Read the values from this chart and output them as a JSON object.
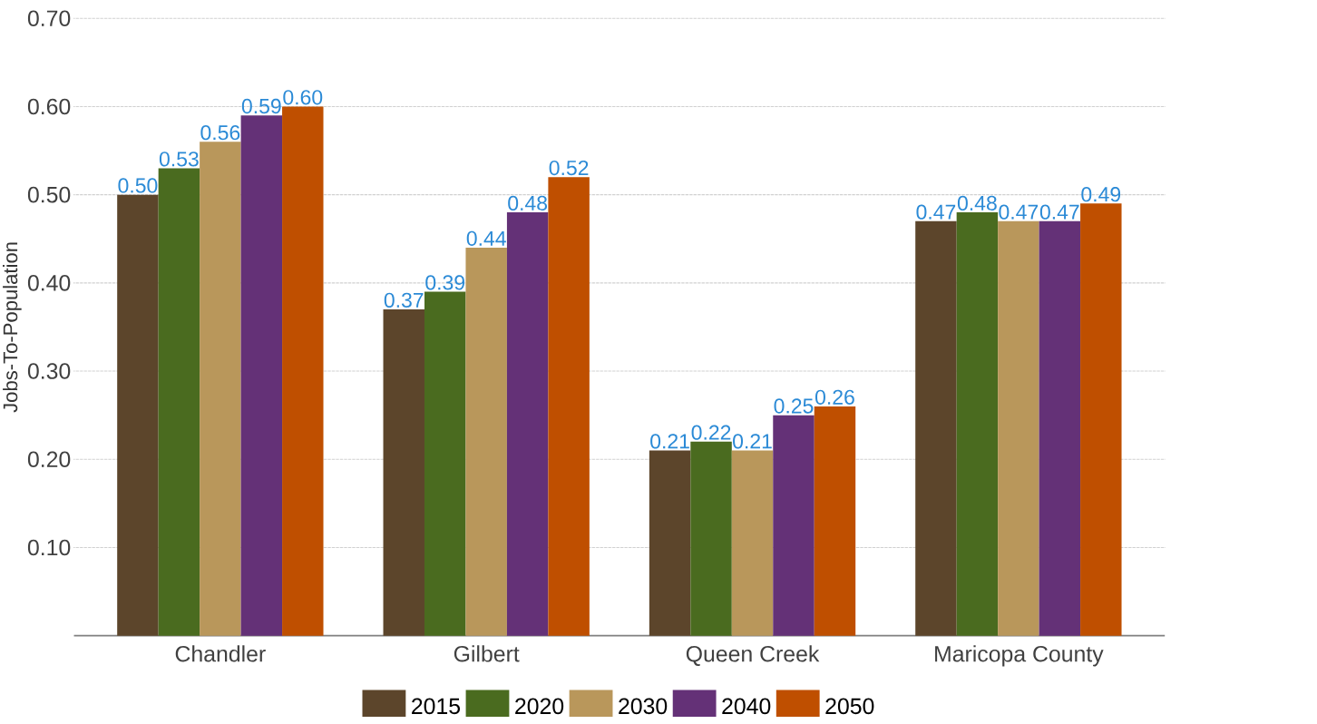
{
  "chart_data": {
    "type": "bar",
    "ylabel": "Jobs-To-Population",
    "categories": [
      "Chandler",
      "Gilbert",
      "Queen Creek",
      "Maricopa County"
    ],
    "series": [
      {
        "name": "2015",
        "color": "#5c452b",
        "values": [
          0.5,
          0.37,
          0.21,
          0.47
        ],
        "value_labels": [
          "0.50",
          "0.37",
          "0.21",
          "0.47"
        ]
      },
      {
        "name": "2020",
        "color": "#4a6b1f",
        "values": [
          0.53,
          0.39,
          0.22,
          0.48
        ],
        "value_labels": [
          "0.53",
          "0.39",
          "0.22",
          "0.48"
        ]
      },
      {
        "name": "2030",
        "color": "#b9975b",
        "values": [
          0.56,
          0.44,
          0.21,
          0.47
        ],
        "value_labels": [
          "0.56",
          "0.44",
          "0.21",
          "0.47"
        ]
      },
      {
        "name": "2040",
        "color": "#643177",
        "values": [
          0.59,
          0.48,
          0.25,
          0.47
        ],
        "value_labels": [
          "0.59",
          "0.48",
          "0.25",
          "0.47"
        ]
      },
      {
        "name": "2050",
        "color": "#bf4f00",
        "values": [
          0.6,
          0.52,
          0.26,
          0.49
        ],
        "value_labels": [
          "0.60",
          "0.52",
          "0.26",
          "0.49"
        ]
      }
    ],
    "ylim": [
      0,
      0.7
    ],
    "yticks": [
      {
        "value": 0.1,
        "label": "0.10"
      },
      {
        "value": 0.2,
        "label": "0.20"
      },
      {
        "value": 0.3,
        "label": "0.30"
      },
      {
        "value": 0.4,
        "label": "0.40"
      },
      {
        "value": 0.5,
        "label": "0.50"
      },
      {
        "value": 0.6,
        "label": "0.60"
      },
      {
        "value": 0.7,
        "label": "0.70"
      }
    ],
    "grid": "y",
    "legend": "bottom"
  }
}
